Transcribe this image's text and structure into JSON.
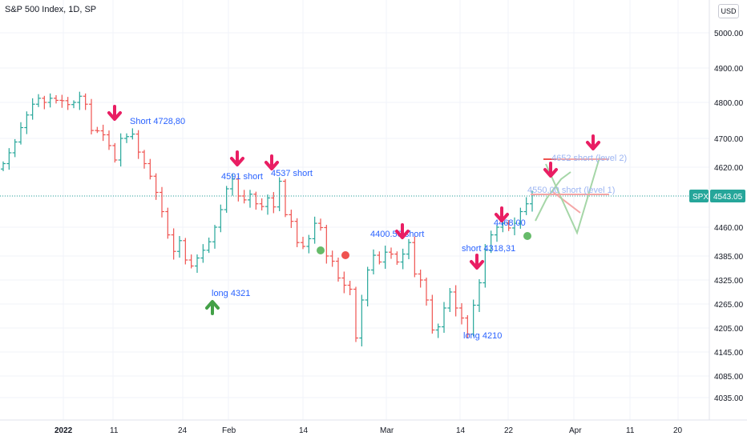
{
  "header": {
    "title": "S&P 500 Index, 1D, SP",
    "currency": "USD"
  },
  "chart_data": {
    "type": "ohlc",
    "title": "S&P 500 Index, 1D, SP",
    "y_ticks": [
      5000.0,
      4900.0,
      4800.0,
      4700.0,
      4620.0,
      4540.0,
      4460.0,
      4385.0,
      4325.0,
      4265.0,
      4205.0,
      4145.0,
      4085.0,
      4035.0
    ],
    "x_ticks": [
      "2022",
      "11",
      "24",
      "Feb",
      "14",
      "Mar",
      "14",
      "22",
      "Apr",
      "11",
      "20"
    ],
    "last_price": {
      "symbol": "SPX",
      "value": 4543.05
    },
    "bars": [
      4630,
      4660,
      4690,
      4730,
      4765,
      4795,
      4812,
      4800,
      4812,
      4806,
      4805,
      4794,
      4800,
      4818,
      4795,
      4722,
      4721,
      4710,
      4680,
      4640,
      4700,
      4705,
      4712,
      4662,
      4630,
      4595,
      4550,
      4500,
      4440,
      4397,
      4425,
      4375,
      4360,
      4380,
      4400,
      4422,
      4460,
      4505,
      4560,
      4587,
      4540,
      4530,
      4545,
      4520,
      4513,
      4535,
      4512,
      4581,
      4492,
      4475,
      4420,
      4410,
      4430,
      4470,
      4459,
      4385,
      4372,
      4330,
      4312,
      4302,
      4180,
      4275,
      4350,
      4387,
      4370,
      4395,
      4390,
      4370,
      4390,
      4420,
      4340,
      4325,
      4275,
      4200,
      4208,
      4255,
      4295,
      4255,
      4230,
      4190,
      4262,
      4318,
      4400,
      4440,
      4460,
      4470,
      4458,
      4470,
      4500,
      4520,
      4543
    ],
    "annotations": [
      {
        "text": "Short 4728,80",
        "style": "normal"
      },
      {
        "text": "4591 short",
        "style": "normal"
      },
      {
        "text": "4537 short",
        "style": "normal"
      },
      {
        "text": "long  4321",
        "style": "normal"
      },
      {
        "text": "4400.50 short",
        "style": "normal"
      },
      {
        "text": "short  4318,31",
        "style": "normal"
      },
      {
        "text": "long  4210",
        "style": "normal"
      },
      {
        "text": "4468,00",
        "style": "normal"
      },
      {
        "text": "4652   short (level 2)",
        "style": "faded"
      },
      {
        "text": "4550,00  short (level 1)",
        "style": "faded"
      }
    ],
    "colors": {
      "up": "#26a69a",
      "down": "#ef5350",
      "arrow_down": "#e91e63",
      "arrow_up": "#43a047",
      "price_line": "#26a69a"
    }
  }
}
